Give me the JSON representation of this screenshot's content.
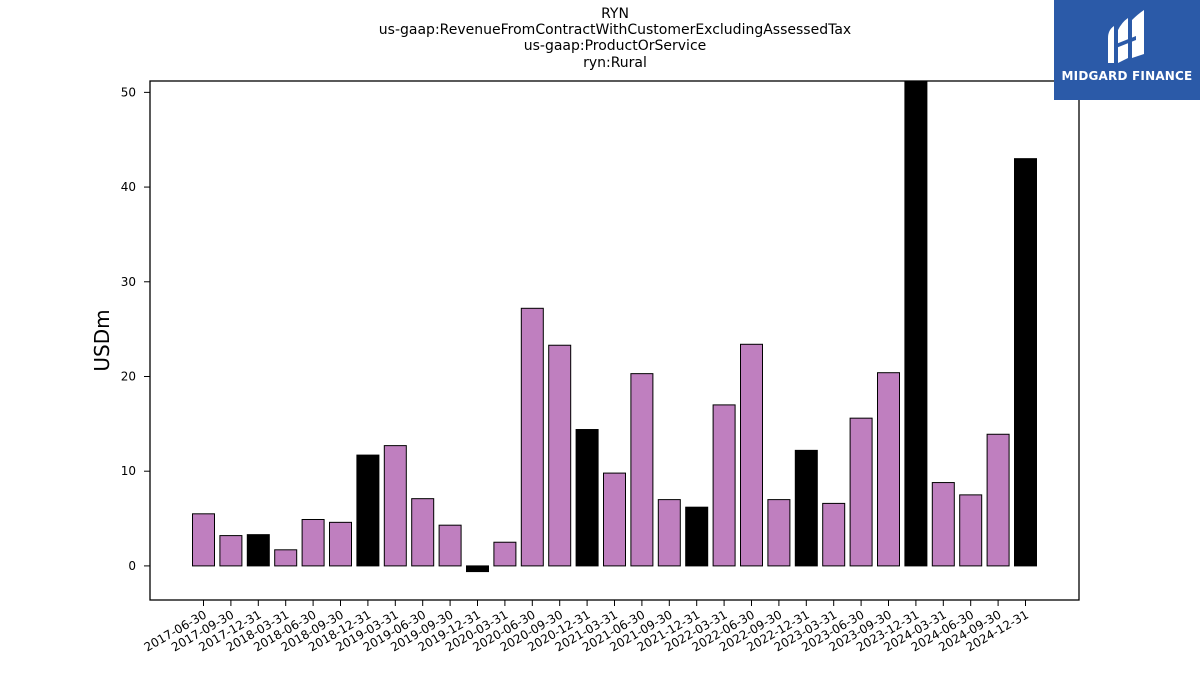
{
  "title_lines": [
    "RYN",
    "us-gaap:RevenueFromContractWithCustomerExcludingAssessedTax",
    "us-gaap:ProductOrService",
    "ryn:Rural"
  ],
  "logo": {
    "text": "MIDGARD FINANCE",
    "icon": "midgard-logo-icon"
  },
  "colors": {
    "normal": "#bf7fbf",
    "year_end": "#000000",
    "logo_bg": "#2b5aa8"
  },
  "chart_data": {
    "type": "bar",
    "title": "RYN\nus-gaap:RevenueFromContractWithCustomerExcludingAssessedTax\nus-gaap:ProductOrService\nryn:Rural",
    "xlabel": "",
    "ylabel": "USDm",
    "ylim": [
      -3.6,
      51.2
    ],
    "yticks": [
      0,
      10,
      20,
      30,
      40,
      50
    ],
    "grid": false,
    "categories": [
      "2017-06-30",
      "2017-09-30",
      "2017-12-31",
      "2018-03-31",
      "2018-06-30",
      "2018-09-30",
      "2018-12-31",
      "2019-03-31",
      "2019-06-30",
      "2019-09-30",
      "2019-12-31",
      "2020-03-31",
      "2020-06-30",
      "2020-09-30",
      "2020-12-31",
      "2021-03-31",
      "2021-06-30",
      "2021-09-30",
      "2021-12-31",
      "2022-03-31",
      "2022-06-30",
      "2022-09-30",
      "2022-12-31",
      "2023-03-31",
      "2023-06-30",
      "2023-09-30",
      "2023-12-31",
      "2024-03-31",
      "2024-06-30",
      "2024-09-30",
      "2024-12-31"
    ],
    "values": [
      5.5,
      3.2,
      3.3,
      1.7,
      4.9,
      4.6,
      11.7,
      12.7,
      7.1,
      4.3,
      -0.6,
      2.5,
      27.2,
      23.3,
      14.4,
      9.8,
      20.3,
      7.0,
      6.2,
      17.0,
      23.4,
      7.0,
      12.2,
      6.6,
      15.6,
      20.4,
      51.2,
      8.8,
      7.5,
      13.9,
      43.0
    ],
    "highlight": [
      false,
      false,
      true,
      false,
      false,
      false,
      true,
      false,
      false,
      false,
      true,
      false,
      false,
      false,
      true,
      false,
      false,
      false,
      true,
      false,
      false,
      false,
      true,
      false,
      false,
      false,
      true,
      false,
      false,
      false,
      true
    ]
  }
}
